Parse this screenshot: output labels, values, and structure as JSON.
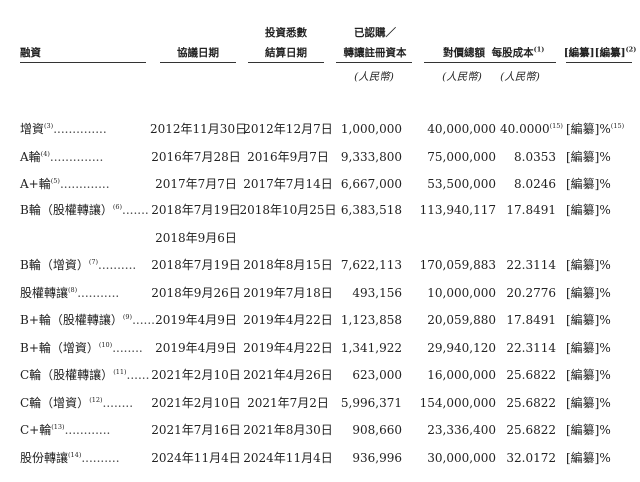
{
  "headers": {
    "financing": "融資",
    "agreement_date": "協議日期",
    "settlement_l1": "投資悉數",
    "settlement_l2": "結算日期",
    "capital_l1": "已認購／",
    "capital_l2": "轉讓註冊資本",
    "consideration": "對價總額",
    "cost_per_share": "每股成本",
    "cost_note": "(1)",
    "redacted": "[編纂][編纂]",
    "redacted_note": "(2)"
  },
  "units": {
    "capital": "(人民幣)",
    "consideration": "(人民幣)",
    "cost": "(人民幣)"
  },
  "rows": [
    {
      "name": "增資",
      "note": "(3)",
      "dots": "..............",
      "agreement": "2012年11月30日",
      "settlement": "2012年12月7日",
      "capital": "1,000,000",
      "consideration": "40,000,000",
      "cost": "40.0000",
      "cost_note": "(15)",
      "redacted": "[編纂]%",
      "redacted_note": "(15)"
    },
    {
      "name": "A輪",
      "note": "(4)",
      "dots": "..............",
      "agreement": "2016年7月28日",
      "settlement": "2016年9月7日",
      "capital": "9,333,800",
      "consideration": "75,000,000",
      "cost": "8.0353",
      "cost_note": "",
      "redacted": "[編纂]%",
      "redacted_note": ""
    },
    {
      "name": "A+輪",
      "note": "(5)",
      "dots": ".............",
      "agreement": "2017年7月7日",
      "settlement": "2017年7月14日",
      "capital": "6,667,000",
      "consideration": "53,500,000",
      "cost": "8.0246",
      "cost_note": "",
      "redacted": "[編纂]%",
      "redacted_note": ""
    },
    {
      "name": "B輪（股權轉讓）",
      "note": "(6)",
      "dots": ".......",
      "agreement": "2018年7月19日",
      "settlement": "2018年10月25日",
      "capital": "6,383,518",
      "consideration": "113,940,117",
      "cost": "17.8491",
      "cost_note": "",
      "redacted": "[編纂]%",
      "redacted_note": ""
    },
    {
      "name": "",
      "note": "",
      "dots": "",
      "agreement": "2018年9月6日",
      "settlement": "",
      "capital": "",
      "consideration": "",
      "cost": "",
      "cost_note": "",
      "redacted": "",
      "redacted_note": ""
    },
    {
      "name": "B輪（增資）",
      "note": "(7)",
      "dots": "..........",
      "agreement": "2018年7月19日",
      "settlement": "2018年8月15日",
      "capital": "7,622,113",
      "consideration": "170,059,883",
      "cost": "22.3114",
      "cost_note": "",
      "redacted": "[編纂]%",
      "redacted_note": ""
    },
    {
      "name": "股權轉讓",
      "note": "(8)",
      "dots": "...........",
      "agreement": "2018年9月26日",
      "settlement": "2019年7月18日",
      "capital": "493,156",
      "consideration": "10,000,000",
      "cost": "20.2776",
      "cost_note": "",
      "redacted": "[編纂]%",
      "redacted_note": ""
    },
    {
      "name": "B+輪（股權轉讓）",
      "note": "(9)",
      "dots": "......",
      "agreement": "2019年4月9日",
      "settlement": "2019年4月22日",
      "capital": "1,123,858",
      "consideration": "20,059,880",
      "cost": "17.8491",
      "cost_note": "",
      "redacted": "[編纂]%",
      "redacted_note": ""
    },
    {
      "name": "B+輪（增資）",
      "note": "(10)",
      "dots": "........",
      "agreement": "2019年4月9日",
      "settlement": "2019年4月22日",
      "capital": "1,341,922",
      "consideration": "29,940,120",
      "cost": "22.3114",
      "cost_note": "",
      "redacted": "[編纂]%",
      "redacted_note": ""
    },
    {
      "name": "C輪（股權轉讓）",
      "note": "(11)",
      "dots": "......",
      "agreement": "2021年2月10日",
      "settlement": "2021年4月26日",
      "capital": "623,000",
      "consideration": "16,000,000",
      "cost": "25.6822",
      "cost_note": "",
      "redacted": "[編纂]%",
      "redacted_note": ""
    },
    {
      "name": "C輪（增資）",
      "note": "(12)",
      "dots": "........",
      "agreement": "2021年2月10日",
      "settlement": "2021年7月2日",
      "capital": "5,996,371",
      "consideration": "154,000,000",
      "cost": "25.6822",
      "cost_note": "",
      "redacted": "[編纂]%",
      "redacted_note": ""
    },
    {
      "name": "C+輪",
      "note": "(13)",
      "dots": "............",
      "agreement": "2021年7月16日",
      "settlement": "2021年8月30日",
      "capital": "908,660",
      "consideration": "23,336,400",
      "cost": "25.6822",
      "cost_note": "",
      "redacted": "[編纂]%",
      "redacted_note": ""
    },
    {
      "name": "股份轉讓",
      "note": "(14)",
      "dots": "..........",
      "agreement": "2024年11月4日",
      "settlement": "2024年11月4日",
      "capital": "936,996",
      "consideration": "30,000,000",
      "cost": "32.0172",
      "cost_note": "",
      "redacted": "[編纂]%",
      "redacted_note": ""
    }
  ]
}
